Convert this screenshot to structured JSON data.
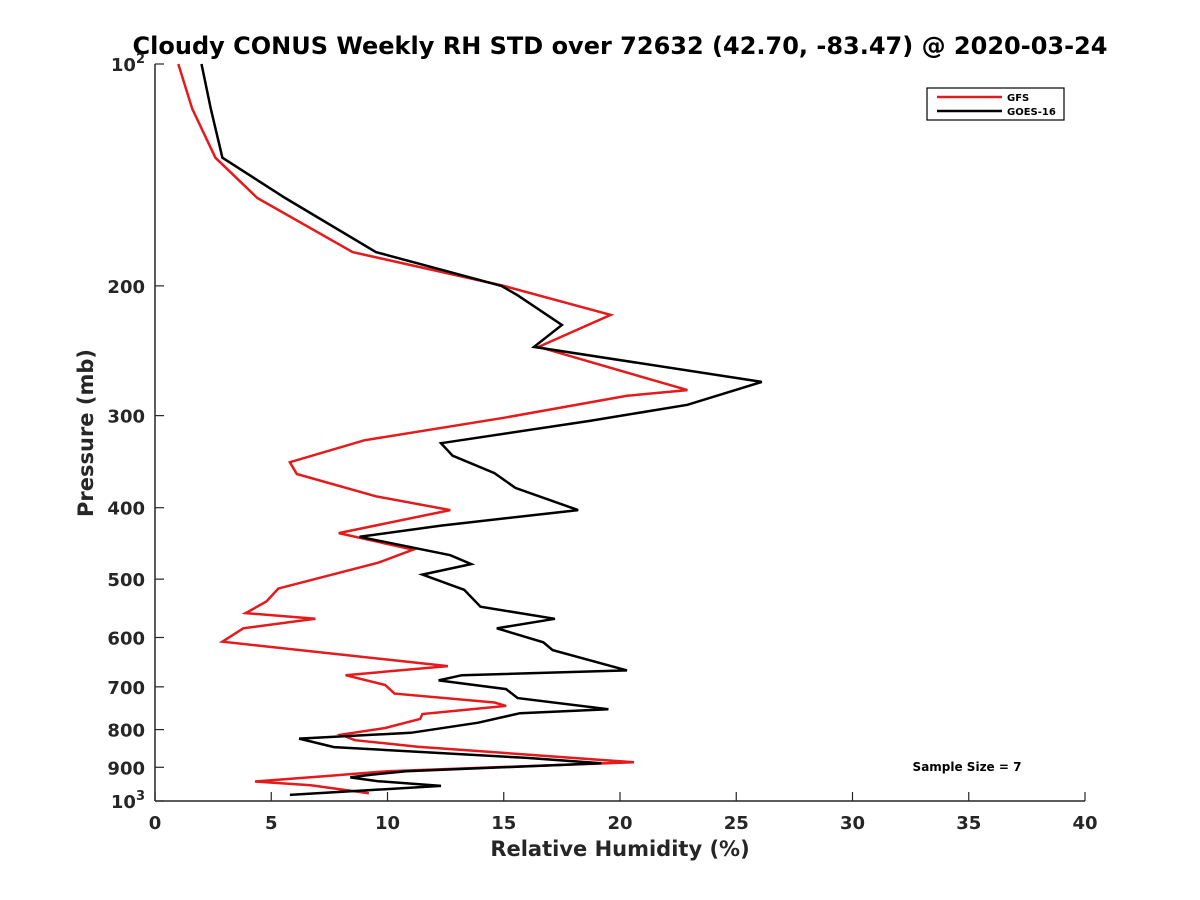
{
  "chart_data": {
    "type": "line",
    "title": "Cloudy CONUS Weekly RH STD over 72632 (42.70, -83.47) @ 2020-03-24",
    "xlabel": "Relative Humidity (%)",
    "ylabel": "Pressure (mb)",
    "xlim": [
      0,
      40
    ],
    "ylim": [
      100,
      1000
    ],
    "y_scale": "log",
    "y_reversed": true,
    "x_ticks": [
      "0",
      "5",
      "10",
      "15",
      "20",
      "25",
      "30",
      "35",
      "40"
    ],
    "y_ticks": [
      {
        "value": 100,
        "base": "10",
        "exp": "2"
      },
      {
        "value": 200,
        "label": "200"
      },
      {
        "value": 300,
        "label": "300"
      },
      {
        "value": 400,
        "label": "400"
      },
      {
        "value": 500,
        "label": "500"
      },
      {
        "value": 600,
        "label": "600"
      },
      {
        "value": 700,
        "label": "700"
      },
      {
        "value": 800,
        "label": "800"
      },
      {
        "value": 900,
        "label": "900"
      },
      {
        "value": 1000,
        "base": "10",
        "exp": "3"
      }
    ],
    "legend_position": "top-right",
    "grid": false,
    "annotation": "Sample Size = 7",
    "series": [
      {
        "name": "GFS",
        "color": "#e41a1c",
        "points": [
          [
            1.0,
            100
          ],
          [
            1.6,
            115
          ],
          [
            2.6,
            134
          ],
          [
            4.4,
            152
          ],
          [
            8.5,
            180
          ],
          [
            15.0,
            200
          ],
          [
            19.6,
            219
          ],
          [
            16.5,
            242
          ],
          [
            22.9,
            277
          ],
          [
            20.3,
            282
          ],
          [
            15.0,
            302
          ],
          [
            9.0,
            324
          ],
          [
            5.8,
            347
          ],
          [
            6.1,
            360
          ],
          [
            9.5,
            386
          ],
          [
            12.7,
            403
          ],
          [
            7.9,
            433
          ],
          [
            11.1,
            456
          ],
          [
            9.6,
            475
          ],
          [
            5.3,
            515
          ],
          [
            4.8,
            536
          ],
          [
            3.9,
            556
          ],
          [
            6.9,
            566
          ],
          [
            3.8,
            583
          ],
          [
            2.9,
            608
          ],
          [
            12.6,
            656
          ],
          [
            8.2,
            675
          ],
          [
            9.9,
            696
          ],
          [
            10.3,
            715
          ],
          [
            14.6,
            735
          ],
          [
            15.1,
            743
          ],
          [
            11.5,
            762
          ],
          [
            11.4,
            774
          ],
          [
            9.9,
            796
          ],
          [
            8.0,
            813
          ],
          [
            8.6,
            827
          ],
          [
            11.3,
            844
          ],
          [
            20.6,
            886
          ],
          [
            10.0,
            911
          ],
          [
            7.4,
            925
          ],
          [
            4.3,
            941
          ],
          [
            6.7,
            952
          ],
          [
            9.2,
            976
          ]
        ]
      },
      {
        "name": "GOES-16",
        "color": "#000000",
        "points": [
          [
            2.0,
            100
          ],
          [
            2.4,
            115
          ],
          [
            2.9,
            134
          ],
          [
            5.6,
            152
          ],
          [
            9.5,
            180
          ],
          [
            14.9,
            200
          ],
          [
            15.6,
            206
          ],
          [
            17.5,
            226
          ],
          [
            16.3,
            242
          ],
          [
            26.1,
            270
          ],
          [
            22.9,
            290
          ],
          [
            18.7,
            305
          ],
          [
            12.3,
            327
          ],
          [
            12.8,
            340
          ],
          [
            14.6,
            359
          ],
          [
            15.5,
            376
          ],
          [
            18.2,
            403
          ],
          [
            12.3,
            423
          ],
          [
            8.8,
            438
          ],
          [
            12.7,
            464
          ],
          [
            13.6,
            477
          ],
          [
            11.5,
            493
          ],
          [
            13.3,
            517
          ],
          [
            14.0,
            545
          ],
          [
            17.2,
            566
          ],
          [
            14.7,
            583
          ],
          [
            16.7,
            609
          ],
          [
            17.1,
            624
          ],
          [
            20.3,
            665
          ],
          [
            13.2,
            675
          ],
          [
            12.2,
            686
          ],
          [
            15.1,
            705
          ],
          [
            15.6,
            725
          ],
          [
            19.5,
            751
          ],
          [
            15.7,
            760
          ],
          [
            13.9,
            783
          ],
          [
            11.0,
            808
          ],
          [
            6.2,
            823
          ],
          [
            7.7,
            845
          ],
          [
            16.0,
            874
          ],
          [
            19.2,
            889
          ],
          [
            10.8,
            911
          ],
          [
            9.2,
            922
          ],
          [
            8.4,
            929
          ],
          [
            9.6,
            940
          ],
          [
            12.3,
            954
          ],
          [
            5.8,
            981
          ]
        ]
      }
    ]
  }
}
